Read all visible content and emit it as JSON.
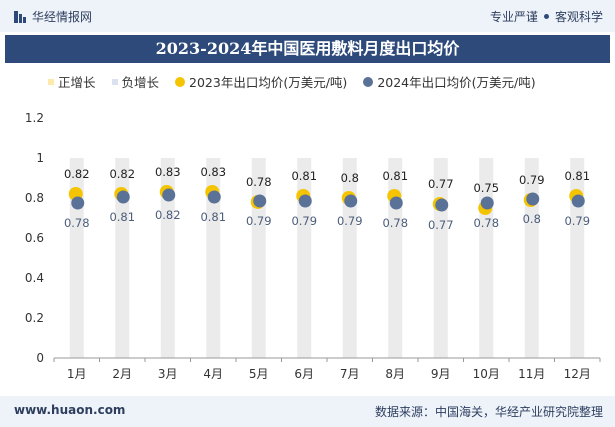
{
  "header": {
    "brand": "华经情报网",
    "tagline_left": "专业严谨",
    "tagline_right": "客观科学"
  },
  "title": "2023-2024年中国医用敷料月度出口均价",
  "legend": {
    "pos_growth": "正增长",
    "neg_growth": "负增长",
    "series_2023": "2023年出口均价(万美元/吨)",
    "series_2024": "2024年出口均价(万美元/吨)"
  },
  "colors": {
    "pos_growth": "#fde9a9",
    "neg_growth": "#d9e2ee",
    "series_2023": "#f5c400",
    "series_2024": "#5b7298",
    "bar": "#ebebeb",
    "title_bg": "#2d4a7a"
  },
  "chart_data": {
    "type": "scatter",
    "categories": [
      "1月",
      "2月",
      "3月",
      "4月",
      "5月",
      "6月",
      "7月",
      "8月",
      "9月",
      "10月",
      "11月",
      "12月"
    ],
    "series": [
      {
        "name": "2023年出口均价(万美元/吨)",
        "values": [
          0.82,
          0.82,
          0.83,
          0.83,
          0.78,
          0.81,
          0.8,
          0.81,
          0.77,
          0.75,
          0.79,
          0.81
        ]
      },
      {
        "name": "2024年出口均价(万美元/吨)",
        "values": [
          0.78,
          0.81,
          0.82,
          0.81,
          0.79,
          0.79,
          0.79,
          0.78,
          0.77,
          0.78,
          0.8,
          0.79
        ]
      }
    ],
    "ylim": [
      0,
      1.2
    ],
    "yticks": [
      "0",
      "0.2",
      "0.4",
      "0.6",
      "0.8",
      "1",
      "1.2"
    ],
    "background_bars": "正增长/负增长",
    "grid": false,
    "legend_position": "top"
  },
  "footer": {
    "site": "www.huaon.com",
    "source": "数据来源：中国海关，华经产业研究院整理"
  }
}
